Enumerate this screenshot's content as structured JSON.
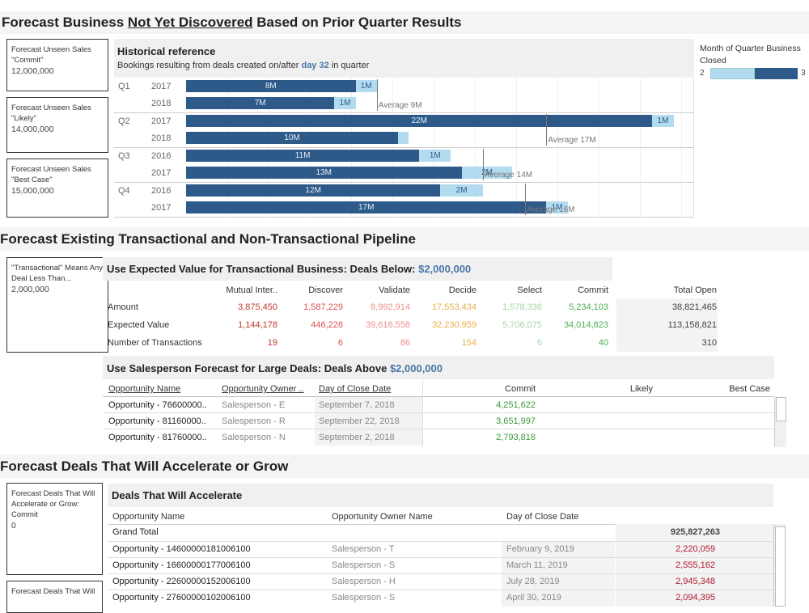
{
  "sections": {
    "s1_title_a": "Forecast Business ",
    "s1_title_u": "Not Yet Discovered",
    "s1_title_b": " Based on Prior Quarter Results",
    "s2_title": "Forecast Existing Transactional and Non-Transactional Pipeline",
    "s3_title": "Forecast Deals That Will Accelerate or Grow"
  },
  "params1": [
    {
      "label": "Forecast Unseen Sales \"Commit\"",
      "value": "12,000,000"
    },
    {
      "label": "Forecast Unseen Sales \"Likely\"",
      "value": "14,000,000"
    },
    {
      "label": "Forecast Unseen Sales \"Best Case\"",
      "value": "15,000,000"
    }
  ],
  "historical": {
    "title": "Historical reference",
    "subtitle_a": "Bookings resulting from deals created on/after ",
    "subtitle_day": "day 32",
    "subtitle_b": " in quarter"
  },
  "chart_data": {
    "type": "bar",
    "stacked": true,
    "orientation": "horizontal",
    "groups": [
      {
        "quarter": "Q1",
        "rows": [
          {
            "year": "2017",
            "dark": 8,
            "dark_label": "8M",
            "light": 1,
            "light_label": "1M"
          },
          {
            "year": "2018",
            "dark": 7,
            "dark_label": "7M",
            "light": 1,
            "light_label": "1M"
          }
        ],
        "average": 9,
        "average_label": "Average 9M"
      },
      {
        "quarter": "Q2",
        "rows": [
          {
            "year": "2017",
            "dark": 22,
            "dark_label": "22M",
            "light": 1,
            "light_label": "1M"
          },
          {
            "year": "2018",
            "dark": 10,
            "dark_label": "10M",
            "light": 0.5,
            "light_label": ""
          }
        ],
        "average": 17,
        "average_label": "Average 17M"
      },
      {
        "quarter": "Q3",
        "rows": [
          {
            "year": "2016",
            "dark": 11,
            "dark_label": "11M",
            "light": 1.5,
            "light_label": "1M"
          },
          {
            "year": "2017",
            "dark": 13,
            "dark_label": "13M",
            "light": 2.4,
            "light_label": "2M"
          }
        ],
        "average": 14,
        "average_label": "Average 14M"
      },
      {
        "quarter": "Q4",
        "rows": [
          {
            "year": "2016",
            "dark": 12,
            "dark_label": "12M",
            "light": 2,
            "light_label": "2M"
          },
          {
            "year": "2017",
            "dark": 17,
            "dark_label": "17M",
            "light": 1,
            "light_label": "1M"
          }
        ],
        "average": 16,
        "average_label": "Average 16M"
      }
    ],
    "xlim": [
      0,
      24
    ]
  },
  "legend": {
    "title": "Month of Quarter Business Closed",
    "min": "2",
    "max": "3",
    "colors": {
      "light": "#b3dbf0",
      "dark": "#2e5a8a"
    }
  },
  "param2": {
    "label": "\"Transactional\" Means Any Deal Less Than...",
    "value": "2,000,000"
  },
  "expected": {
    "title_a": "Use Expected Value for Transactional Business: Deals Below: ",
    "title_amt": "$2,000,000",
    "columns": [
      "Mutual Inter..",
      "Discover",
      "Validate",
      "Decide",
      "Select",
      "Commit",
      "Total Open"
    ],
    "rows": [
      {
        "label": "Amount",
        "values": [
          "3,875,450",
          "1,587,229",
          "8,992,914",
          "17,553,434",
          "1,578,336",
          "5,234,103",
          "38,821,465"
        ]
      },
      {
        "label": "Expected Value",
        "values": [
          "1,144,178",
          "446,228",
          "39,616,558",
          "32,230,959",
          "5,706,075",
          "34,014,823",
          "113,158,821"
        ]
      },
      {
        "label": "Number of Transactions",
        "values": [
          "19",
          "6",
          "86",
          "154",
          "6",
          "40",
          "310"
        ]
      }
    ],
    "colors": [
      "#c0392b",
      "#d9534f",
      "#e8908a",
      "#e8b04c",
      "#a5d6a7",
      "#4caf50",
      "#444444"
    ]
  },
  "large": {
    "title_a": "Use Salesperson Forecast for Large Deals: Deals Above ",
    "title_amt": "$2,000,000",
    "columns": [
      "Opportunity Name",
      "Opportunity Owner ..",
      "Day of Close Date",
      "Commit",
      "Likely",
      "Best Case"
    ],
    "rows": [
      {
        "name": "Opportunity - 76600000..",
        "owner": "Salesperson - E",
        "date": "September 7, 2018",
        "commit": "4,251,622"
      },
      {
        "name": "Opportunity - 81160000..",
        "owner": "Salesperson - R",
        "date": "September 22, 2018",
        "commit": "3,651,997"
      },
      {
        "name": "Opportunity - 81760000..",
        "owner": "Salesperson - N",
        "date": "September 2, 2018",
        "commit": "2,793,818"
      }
    ]
  },
  "params3": [
    {
      "label": "Forecast Deals That Will Accelerate or Grow: Commit",
      "value": "0"
    },
    {
      "label": "Forecast Deals That Will",
      "value": ""
    }
  ],
  "accelerate": {
    "title": "Deals That Will Accelerate",
    "columns": [
      "Opportunity Name",
      "Opportunity Owner Name",
      "Day of Close Date"
    ],
    "grand_total_label": "Grand Total",
    "grand_total_value": "925,827,263",
    "rows": [
      {
        "name": "Opportunity - 14600000181006100",
        "owner": "Salesperson - T",
        "date": "February 9, 2019",
        "value": "2,220,059"
      },
      {
        "name": "Opportunity - 16600000177006100",
        "owner": "Salesperson - S",
        "date": "March 11, 2019",
        "value": "2,555,162"
      },
      {
        "name": "Opportunity - 22600000152006100",
        "owner": "Salesperson - H",
        "date": "July 28, 2019",
        "value": "2,945,348"
      },
      {
        "name": "Opportunity - 27600000102006100",
        "owner": "Salesperson - S",
        "date": "April 30, 2019",
        "value": "2,094,395"
      }
    ]
  }
}
